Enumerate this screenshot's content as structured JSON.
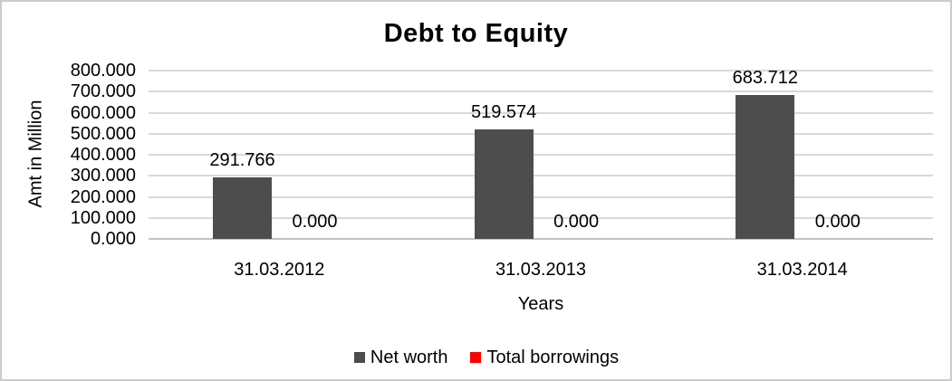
{
  "chart_data": {
    "type": "bar",
    "title": "Debt to Equity",
    "xlabel": "Years",
    "ylabel": "Amt in Million",
    "categories": [
      "31.03.2012",
      "31.03.2013",
      "31.03.2014"
    ],
    "series": [
      {
        "name": "Net worth",
        "color": "#4d4d4d",
        "values": [
          291.766,
          519.574,
          683.712
        ]
      },
      {
        "name": "Total borrowings",
        "color": "#ff0000",
        "values": [
          0,
          0,
          0
        ]
      }
    ],
    "value_labels": [
      [
        "291.766",
        "519.574",
        "683.712"
      ],
      [
        "0.000",
        "0.000",
        "0.000"
      ]
    ],
    "ylim": [
      0,
      800
    ],
    "ytick_step": 100,
    "ytick_labels": [
      "800.000",
      "700.000",
      "600.000",
      "500.000",
      "400.000",
      "300.000",
      "200.000",
      "100.000",
      "0.000"
    ],
    "grid": true,
    "legend_position": "bottom",
    "colors": {
      "net_worth": "#4d4d4d",
      "total_borrowings": "#ff0000",
      "gridline": "#d9d9d9",
      "axis_line": "#c3c3c3",
      "text": "#000000",
      "border": "#cbcbcb"
    }
  }
}
